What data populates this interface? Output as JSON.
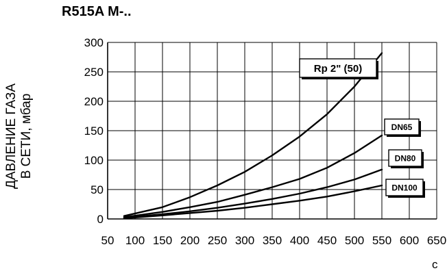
{
  "chart_data": {
    "type": "line",
    "title": "R515A M-..",
    "ylabel_lines": [
      "ДАВЛЕНИЕ ГАЗА",
      "В СЕТИ, мбар"
    ],
    "xlabel": "c",
    "xlim": [
      50,
      650
    ],
    "ylim": [
      0,
      300
    ],
    "x_ticks": [
      50,
      100,
      150,
      200,
      250,
      300,
      350,
      400,
      450,
      500,
      550,
      600,
      650
    ],
    "y_ticks": [
      0,
      50,
      100,
      150,
      200,
      250,
      300
    ],
    "grid": true,
    "series": [
      {
        "name": "Rp 2\" (50)",
        "color": "#000000",
        "points": [
          [
            80,
            5
          ],
          [
            150,
            20
          ],
          [
            200,
            37
          ],
          [
            250,
            57
          ],
          [
            300,
            80
          ],
          [
            350,
            108
          ],
          [
            400,
            140
          ],
          [
            450,
            178
          ],
          [
            500,
            225
          ],
          [
            550,
            282
          ]
        ]
      },
      {
        "name": "DN65",
        "color": "#000000",
        "points": [
          [
            80,
            3
          ],
          [
            150,
            12
          ],
          [
            200,
            20
          ],
          [
            250,
            29
          ],
          [
            300,
            41
          ],
          [
            350,
            54
          ],
          [
            400,
            68
          ],
          [
            450,
            87
          ],
          [
            500,
            112
          ],
          [
            550,
            142
          ]
        ]
      },
      {
        "name": "DN80",
        "color": "#000000",
        "points": [
          [
            80,
            2
          ],
          [
            150,
            8
          ],
          [
            200,
            13
          ],
          [
            250,
            19
          ],
          [
            300,
            26
          ],
          [
            350,
            34
          ],
          [
            400,
            43
          ],
          [
            450,
            54
          ],
          [
            500,
            67
          ],
          [
            550,
            84
          ]
        ]
      },
      {
        "name": "DN100",
        "color": "#000000",
        "points": [
          [
            80,
            1
          ],
          [
            150,
            6
          ],
          [
            200,
            10
          ],
          [
            250,
            14
          ],
          [
            300,
            19
          ],
          [
            350,
            25
          ],
          [
            400,
            31
          ],
          [
            450,
            38
          ],
          [
            500,
            47
          ],
          [
            550,
            57
          ]
        ]
      }
    ]
  }
}
